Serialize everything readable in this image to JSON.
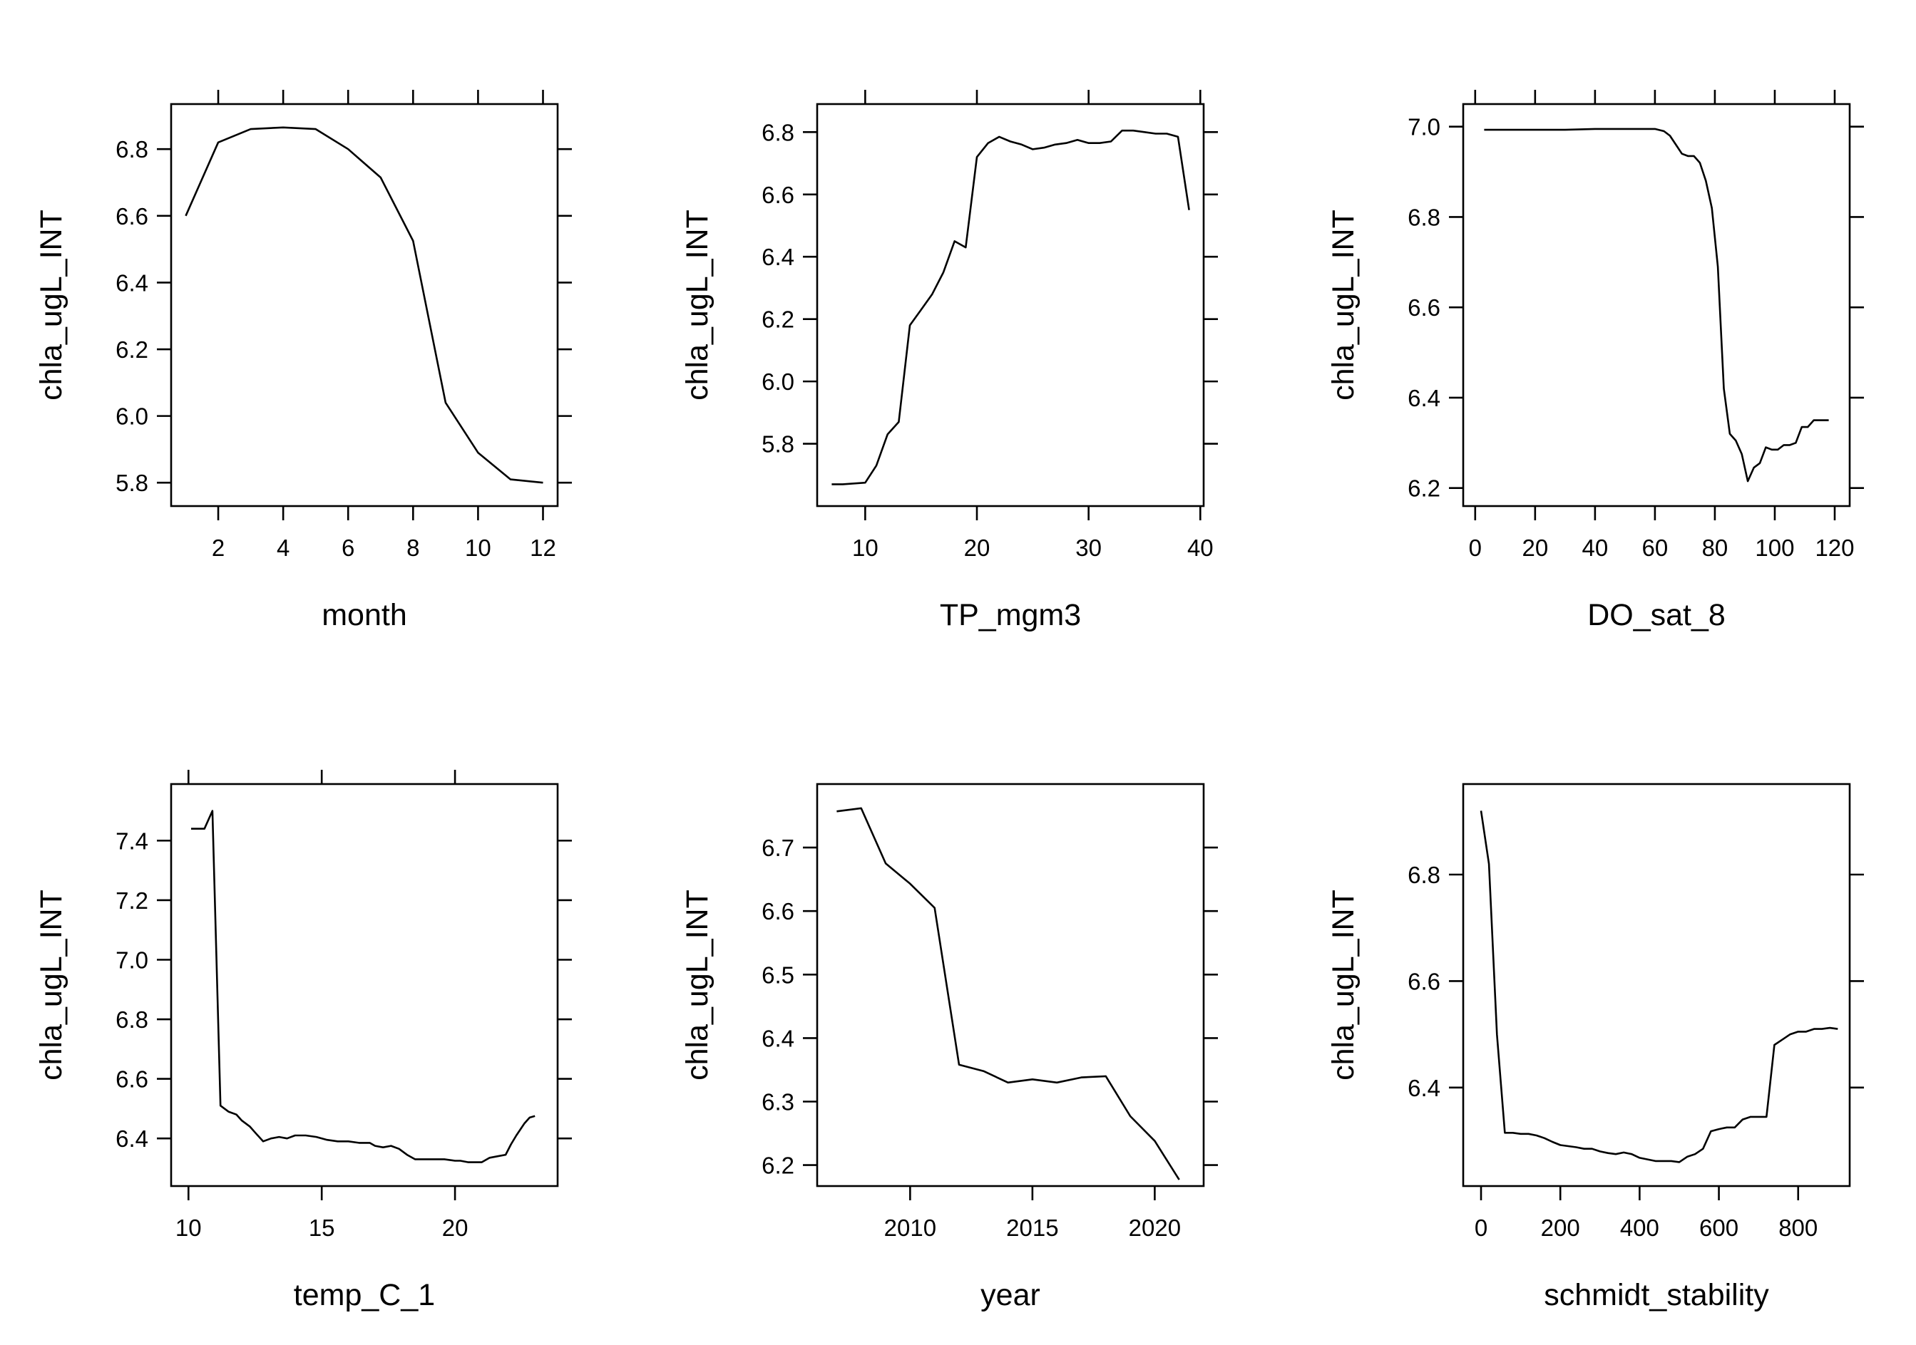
{
  "chart_data": [
    {
      "type": "line",
      "title": "",
      "xlabel": "month",
      "ylabel": "chla_ugL_INT",
      "xlim": [
        0.55,
        12.45
      ],
      "ylim": [
        5.73,
        6.935
      ],
      "xticks": [
        2,
        4,
        6,
        8,
        10,
        12
      ],
      "xtick_labels": [
        "2",
        "4",
        "6",
        "8",
        "10",
        "12"
      ],
      "yticks": [
        5.8,
        6.0,
        6.2,
        6.4,
        6.6,
        6.8
      ],
      "ytick_labels": [
        "5.8",
        "6.0",
        "6.2",
        "6.4",
        "6.6",
        "6.8"
      ],
      "x": [
        1,
        2,
        3,
        4,
        5,
        6,
        7,
        8,
        9,
        10,
        11,
        12
      ],
      "y": [
        6.6,
        6.82,
        6.86,
        6.865,
        6.86,
        6.8,
        6.715,
        6.525,
        6.04,
        5.89,
        5.81,
        5.8
      ]
    },
    {
      "type": "line",
      "title": "",
      "xlabel": "TP_mgm3",
      "ylabel": "chla_ugL_INT",
      "xlim": [
        5.7,
        40.3
      ],
      "ylim": [
        5.6,
        6.89
      ],
      "xticks": [
        10,
        20,
        30,
        40
      ],
      "xtick_labels": [
        "10",
        "20",
        "30",
        "40"
      ],
      "yticks": [
        5.8,
        6.0,
        6.2,
        6.4,
        6.6,
        6.8
      ],
      "ytick_labels": [
        "5.8",
        "6.0",
        "6.2",
        "6.4",
        "6.6",
        "6.8"
      ],
      "x": [
        7,
        8,
        10,
        11,
        12,
        13,
        14,
        15,
        16,
        17,
        18,
        19,
        20,
        21,
        22,
        23,
        24,
        25,
        26,
        27,
        28,
        29,
        30,
        31,
        32,
        33,
        34,
        35,
        36,
        37,
        38,
        39
      ],
      "y": [
        5.67,
        5.67,
        5.675,
        5.73,
        5.83,
        5.87,
        6.18,
        6.23,
        6.28,
        6.35,
        6.45,
        6.43,
        6.72,
        6.765,
        6.785,
        6.77,
        6.76,
        6.745,
        6.75,
        6.76,
        6.765,
        6.775,
        6.765,
        6.765,
        6.77,
        6.805,
        6.805,
        6.8,
        6.795,
        6.795,
        6.785,
        6.55
      ]
    },
    {
      "type": "line",
      "title": "",
      "xlabel": "DO_sat_8",
      "ylabel": "chla_ugL_INT",
      "xlim": [
        -4.0,
        125.0
      ],
      "ylim": [
        6.16,
        7.05
      ],
      "xticks": [
        0,
        20,
        40,
        60,
        80,
        100,
        120
      ],
      "xtick_labels": [
        "0",
        "20",
        "40",
        "60",
        "80",
        "100",
        "120"
      ],
      "yticks": [
        6.2,
        6.4,
        6.6,
        6.8,
        7.0
      ],
      "ytick_labels": [
        "6.2",
        "6.4",
        "6.6",
        "6.8",
        "7.0"
      ],
      "x": [
        3,
        30,
        40,
        60,
        63,
        65,
        67,
        69,
        71,
        73,
        75,
        77,
        79,
        81,
        83,
        85,
        87,
        89,
        91,
        93,
        95,
        97,
        99,
        101,
        103,
        105,
        107,
        109,
        111,
        113,
        115,
        118
      ],
      "y": [
        6.993,
        6.993,
        6.995,
        6.995,
        6.99,
        6.98,
        6.96,
        6.94,
        6.935,
        6.935,
        6.92,
        6.88,
        6.82,
        6.69,
        6.42,
        6.32,
        6.305,
        6.275,
        6.215,
        6.245,
        6.255,
        6.29,
        6.285,
        6.285,
        6.295,
        6.295,
        6.3,
        6.335,
        6.335,
        6.35,
        6.35,
        6.35
      ]
    },
    {
      "type": "line",
      "title": "",
      "xlabel": "temp_C_1",
      "ylabel": "chla_ugL_INT",
      "xlim": [
        9.35,
        23.85
      ],
      "ylim": [
        6.24,
        7.59
      ],
      "xticks": [
        10,
        15,
        20
      ],
      "xtick_labels": [
        "10",
        "15",
        "20"
      ],
      "yticks": [
        6.4,
        6.6,
        6.8,
        7.0,
        7.2,
        7.4
      ],
      "ytick_labels": [
        "6.4",
        "6.6",
        "6.8",
        "7.0",
        "7.2",
        "7.4"
      ],
      "x": [
        10.1,
        10.6,
        10.9,
        11.2,
        11.5,
        11.8,
        12.0,
        12.3,
        12.5,
        12.8,
        13.1,
        13.4,
        13.7,
        14.0,
        14.4,
        14.8,
        15.2,
        15.6,
        16.0,
        16.4,
        16.8,
        17.0,
        17.3,
        17.6,
        17.9,
        18.2,
        18.5,
        18.8,
        19.2,
        19.6,
        20.0,
        20.2,
        20.5,
        20.8,
        21.0,
        21.3,
        21.6,
        21.9,
        22.1,
        22.3,
        22.6,
        22.8,
        23.0
      ],
      "y": [
        7.44,
        7.44,
        7.5,
        6.51,
        6.49,
        6.48,
        6.46,
        6.44,
        6.42,
        6.39,
        6.4,
        6.405,
        6.4,
        6.41,
        6.41,
        6.405,
        6.395,
        6.39,
        6.39,
        6.385,
        6.385,
        6.375,
        6.37,
        6.375,
        6.365,
        6.345,
        6.33,
        6.33,
        6.33,
        6.33,
        6.325,
        6.325,
        6.32,
        6.32,
        6.32,
        6.335,
        6.34,
        6.345,
        6.38,
        6.41,
        6.45,
        6.47,
        6.475
      ]
    },
    {
      "type": "line",
      "title": "",
      "xlabel": "year",
      "ylabel": "chla_ugL_INT",
      "xlim": [
        2006.2,
        2022.0
      ],
      "ylim": [
        6.167,
        6.8
      ],
      "xticks": [
        2010,
        2015,
        2020
      ],
      "xtick_labels": [
        "2010",
        "2015",
        "2020"
      ],
      "yticks": [
        6.2,
        6.3,
        6.4,
        6.5,
        6.6,
        6.7
      ],
      "ytick_labels": [
        "6.2",
        "6.3",
        "6.4",
        "6.5",
        "6.6",
        "6.7"
      ],
      "x": [
        2007,
        2008,
        2009,
        2010,
        2011,
        2012,
        2013,
        2014,
        2015,
        2016,
        2017,
        2018,
        2019,
        2020,
        2021
      ],
      "y": [
        6.757,
        6.762,
        6.675,
        6.643,
        6.605,
        6.358,
        6.348,
        6.33,
        6.335,
        6.33,
        6.338,
        6.34,
        6.277,
        6.238,
        6.177
      ]
    },
    {
      "type": "line",
      "title": "",
      "xlabel": "schmidt_stability",
      "ylabel": "chla_ugL_INT",
      "xlim": [
        -45.0,
        930.0
      ],
      "ylim": [
        6.215,
        6.97
      ],
      "xticks": [
        0,
        200,
        400,
        600,
        800
      ],
      "xtick_labels": [
        "0",
        "200",
        "400",
        "600",
        "800"
      ],
      "yticks": [
        6.4,
        6.6,
        6.8
      ],
      "ytick_labels": [
        "6.4",
        "6.6",
        "6.8"
      ],
      "x": [
        0,
        20,
        40,
        60,
        80,
        100,
        120,
        140,
        160,
        180,
        200,
        220,
        240,
        260,
        280,
        300,
        320,
        340,
        360,
        380,
        400,
        420,
        440,
        460,
        480,
        500,
        520,
        540,
        560,
        580,
        600,
        620,
        640,
        660,
        680,
        700,
        720,
        740,
        760,
        780,
        800,
        820,
        840,
        860,
        880,
        900
      ],
      "y": [
        6.92,
        6.82,
        6.5,
        6.315,
        6.315,
        6.313,
        6.313,
        6.31,
        6.305,
        6.298,
        6.292,
        6.29,
        6.288,
        6.285,
        6.285,
        6.28,
        6.277,
        6.275,
        6.278,
        6.275,
        6.268,
        6.265,
        6.262,
        6.262,
        6.262,
        6.26,
        6.27,
        6.275,
        6.285,
        6.318,
        6.322,
        6.325,
        6.325,
        6.34,
        6.345,
        6.345,
        6.345,
        6.48,
        6.49,
        6.5,
        6.505,
        6.505,
        6.51,
        6.51,
        6.512,
        6.51
      ]
    }
  ]
}
